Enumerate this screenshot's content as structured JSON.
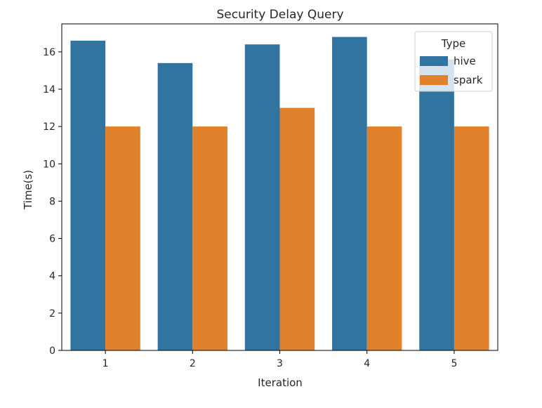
{
  "chart_data": {
    "type": "bar",
    "title": "Security Delay Query",
    "xlabel": "Iteration",
    "ylabel": "Time(s)",
    "categories": [
      "1",
      "2",
      "3",
      "4",
      "5"
    ],
    "series": [
      {
        "name": "hive",
        "color": "#3274a1",
        "values": [
          16.6,
          15.4,
          16.4,
          16.8,
          15.6
        ]
      },
      {
        "name": "spark",
        "color": "#e1812c",
        "values": [
          12,
          12,
          13,
          12,
          12
        ]
      }
    ],
    "ylim": [
      0,
      17.5
    ],
    "yticks": [
      0,
      2,
      4,
      6,
      8,
      10,
      12,
      14,
      16
    ],
    "grid": false,
    "legend": {
      "title": "Type",
      "placement": "top-right"
    }
  }
}
